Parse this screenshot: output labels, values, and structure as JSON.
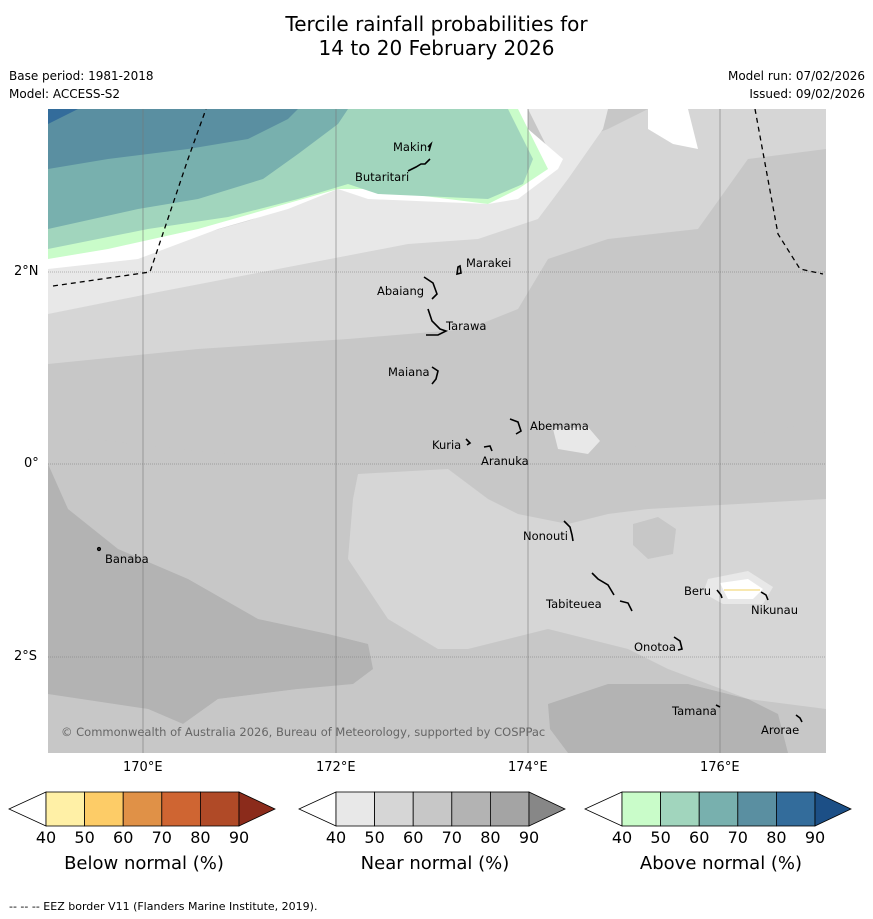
{
  "title_line1": "Tercile rainfall probabilities for",
  "title_line2": "14 to 20 February 2026",
  "meta": {
    "base_period": "Base period: 1981-2018",
    "model": "Model: ACCESS-S2",
    "model_run": "Model run: 07/02/2026",
    "issued": "Issued: 09/02/2026"
  },
  "lat_labels": [
    "2°N",
    "0°",
    "2°S"
  ],
  "lon_labels": [
    "170°E",
    "172°E",
    "174°E",
    "176°E"
  ],
  "places": [
    "Makin",
    "Butaritari",
    "Marakei",
    "Abaiang",
    "Tarawa",
    "Maiana",
    "Abemama",
    "Kuria",
    "Aranuka",
    "Nonouti",
    "Banaba",
    "Beru",
    "Nikunau",
    "Tabiteuea",
    "Onotoa",
    "Tamana",
    "Arorae"
  ],
  "copyright": "© Commonwealth of Australia 2026, Bureau of Meteorology, supported by COSPPac",
  "colorbars": [
    {
      "label": "Below normal (%)",
      "ticks": [
        "40",
        "50",
        "60",
        "70",
        "80",
        "90"
      ],
      "colors": [
        "#ffffff",
        "#fff0a6",
        "#fdcc67",
        "#e09147",
        "#cf6532",
        "#b04a27",
        "#8b2b1b"
      ]
    },
    {
      "label": "Near normal (%)",
      "ticks": [
        "40",
        "50",
        "60",
        "70",
        "80",
        "90"
      ],
      "colors": [
        "#ffffff",
        "#e8e8e8",
        "#d6d6d6",
        "#c7c7c7",
        "#b3b3b3",
        "#a4a4a4",
        "#878787"
      ]
    },
    {
      "label": "Above normal (%)",
      "ticks": [
        "40",
        "50",
        "60",
        "70",
        "80",
        "90"
      ],
      "colors": [
        "#ffffff",
        "#c9fcc9",
        "#a1d5bd",
        "#78b0ae",
        "#5a8fa1",
        "#336c9b",
        "#1c4f86"
      ]
    }
  ],
  "footer": "--  --  -- EEZ border V11 (Flanders Marine Institute, 2019)."
}
